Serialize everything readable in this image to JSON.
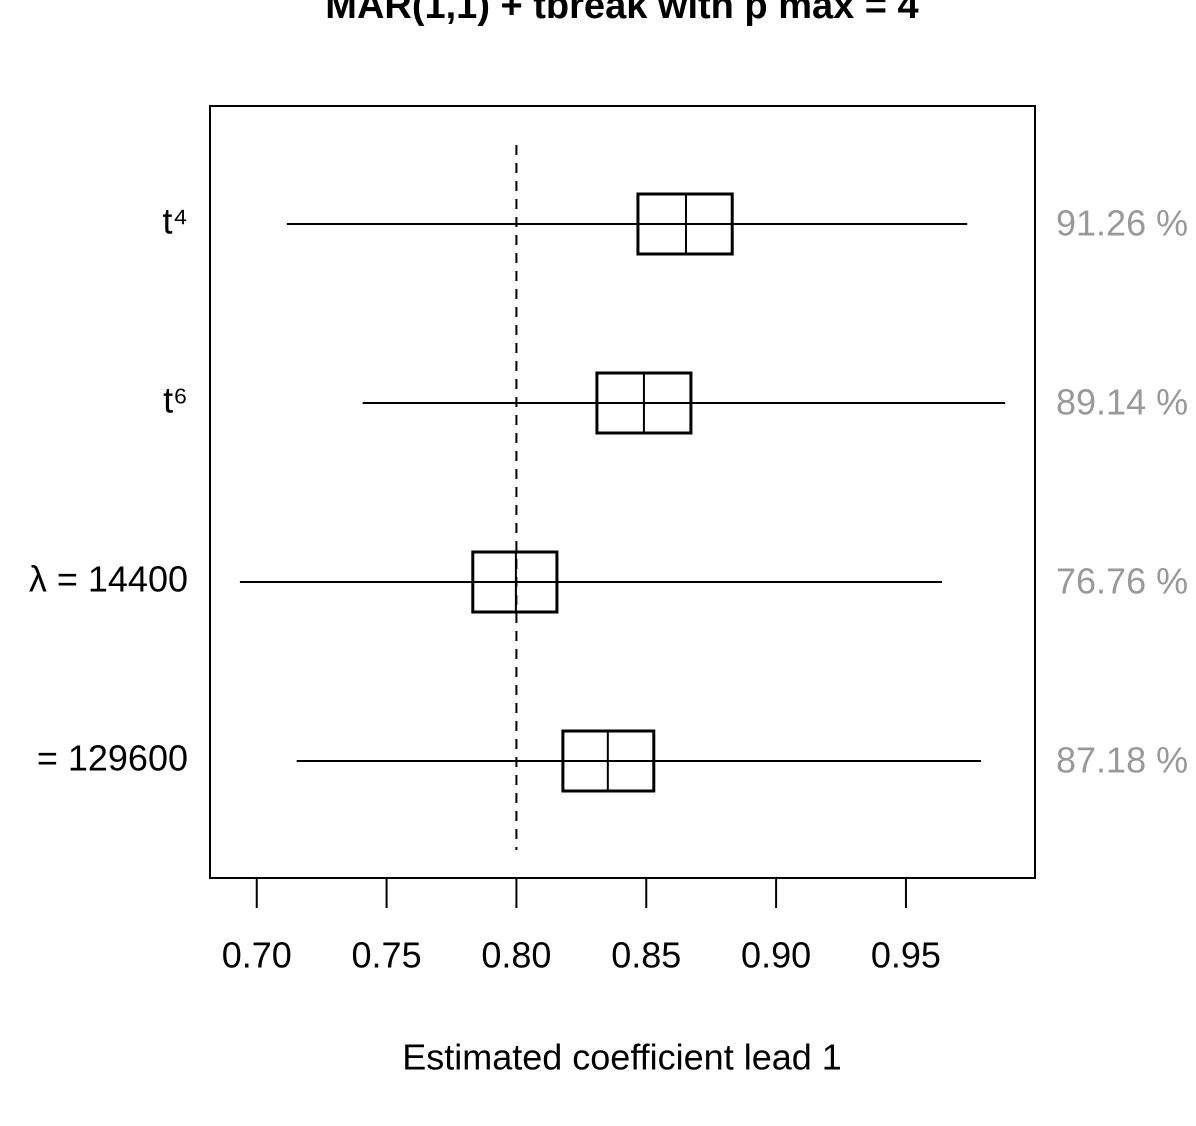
{
  "chart_data": {
    "type": "boxplot",
    "title": "MAR(1,1) + tbreak with p max = 4",
    "x_label": "Estimated coefficient lead 1",
    "categories": [
      "t⁴",
      "t⁶",
      "λ = 14400",
      "= 129600"
    ],
    "boxes": [
      {
        "min": 0.7116,
        "q1": 0.8468,
        "median": 0.8653,
        "q3": 0.8831,
        "max": 0.9736
      },
      {
        "min": 0.7408,
        "q1": 0.831,
        "median": 0.8491,
        "q3": 0.8672,
        "max": 0.9882
      },
      {
        "min": 0.6935,
        "q1": 0.7832,
        "median": 0.7998,
        "q3": 0.8156,
        "max": 0.9639
      },
      {
        "min": 0.7154,
        "q1": 0.8179,
        "median": 0.8352,
        "q3": 0.8529,
        "max": 0.9789
      }
    ],
    "annotations": [
      "91.26 %",
      "89.14 %",
      "76.76 %",
      "87.18 %"
    ],
    "reference_line": 0.8,
    "xlim": [
      0.682,
      0.9997
    ],
    "xticks": [
      {
        "value": 0.7,
        "label": "0.70"
      },
      0.75,
      {
        "value": 0.8,
        "label": "0.80"
      },
      0.85,
      {
        "value": 0.9,
        "label": "0.90"
      },
      0.95
    ]
  }
}
